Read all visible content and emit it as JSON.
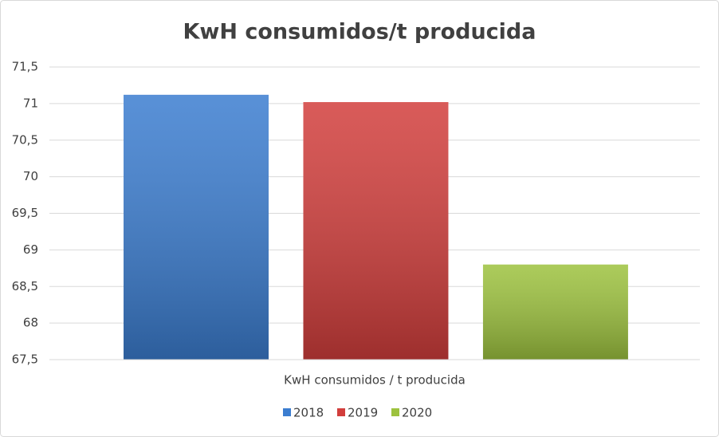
{
  "chart_data": {
    "type": "bar",
    "title": "KwH consumidos/t producida",
    "categories": [
      "KwH consumidos / t producida"
    ],
    "series": [
      {
        "name": "2018",
        "color": "#3b7dd0",
        "values": [
          71.12
        ]
      },
      {
        "name": "2019",
        "color": "#d23e3c",
        "values": [
          71.02
        ]
      },
      {
        "name": "2020",
        "color": "#9dc23e",
        "values": [
          68.8
        ]
      }
    ],
    "ylim": [
      67.5,
      71.5
    ],
    "yticks": [
      {
        "value": 67.5,
        "label": "67,5"
      },
      68,
      {
        "value": 68.5,
        "label": "68,5"
      },
      69,
      {
        "value": 69.5,
        "label": "69,5"
      },
      70,
      {
        "value": 70.5,
        "label": "70,5"
      },
      71,
      {
        "value": 71.5,
        "label": "71,5"
      }
    ],
    "grid": true,
    "legend": "bottom"
  }
}
